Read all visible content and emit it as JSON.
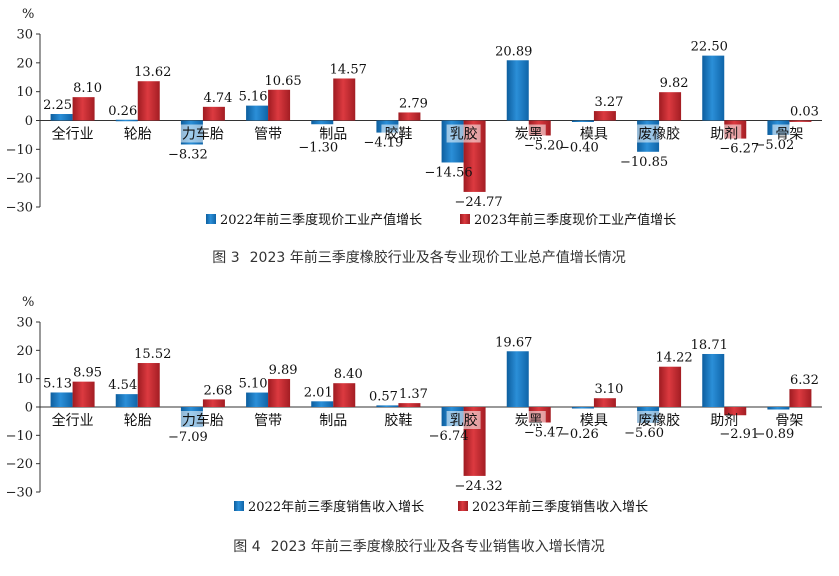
{
  "chart_data": [
    {
      "type": "bar",
      "figure_label": "图 3",
      "title": "2023 年前三季度橡胶行业及各专业现价工业总产值增长情况",
      "ylabel": "%",
      "ylim": [
        -30,
        30
      ],
      "yticks": [
        30,
        20,
        10,
        0,
        -10,
        -20,
        -30
      ],
      "categories": [
        "全行业",
        "轮胎",
        "力车胎",
        "管带",
        "制品",
        "胶鞋",
        "乳胶",
        "炭黑",
        "模具",
        "废橡胶",
        "助剂",
        "骨架"
      ],
      "series": [
        {
          "name": "2022年前三季度现价工业产值增长",
          "color": "#1a78c2",
          "values": [
            2.25,
            0.26,
            -8.32,
            5.16,
            -1.3,
            -4.19,
            -14.56,
            20.89,
            -0.4,
            -10.85,
            22.5,
            -5.02
          ]
        },
        {
          "name": "2023年前三季度现价工业产值增长",
          "color": "#c0272d",
          "values": [
            8.1,
            13.62,
            4.74,
            10.65,
            14.57,
            2.79,
            -24.77,
            -5.2,
            3.27,
            9.82,
            -6.27,
            0.03
          ]
        }
      ],
      "series_labels": [
        [
          "2.25",
          "0.26",
          "−8.32",
          "5.16",
          "−1.30",
          "−4.19",
          "−14.56",
          "20.89",
          "−0.40",
          "−10.85",
          "22.50",
          "−5.02"
        ],
        [
          "8.10",
          "13.62",
          "4.74",
          "10.65",
          "14.57",
          "2.79",
          "−24.77",
          "−5.20",
          "3.27",
          "9.82",
          "−6.27",
          "0.03"
        ]
      ],
      "yticklabels": [
        "30",
        "20",
        "10",
        "0",
        "−10",
        "−20",
        "−30"
      ],
      "legend_position": "bottom-center"
    },
    {
      "type": "bar",
      "figure_label": "图 4",
      "title": "2023 年前三季度橡胶行业及各专业销售收入增长情况",
      "ylabel": "%",
      "ylim": [
        -30,
        30
      ],
      "yticks": [
        30,
        20,
        10,
        0,
        -10,
        -20,
        -30
      ],
      "categories": [
        "全行业",
        "轮胎",
        "力车胎",
        "管带",
        "制品",
        "胶鞋",
        "乳胶",
        "炭黑",
        "模具",
        "废橡胶",
        "助剂",
        "骨架"
      ],
      "series": [
        {
          "name": "2022年前三季度销售收入增长",
          "color": "#1a78c2",
          "values": [
            5.13,
            4.54,
            -7.09,
            5.1,
            2.01,
            0.57,
            -6.74,
            19.67,
            -0.26,
            -5.6,
            18.71,
            -0.89
          ]
        },
        {
          "name": "2023年前三季度销售收入增长",
          "color": "#c0272d",
          "values": [
            8.95,
            15.52,
            2.68,
            9.89,
            8.4,
            1.37,
            -24.32,
            -5.47,
            3.1,
            14.22,
            -2.91,
            6.32
          ]
        }
      ],
      "series_labels": [
        [
          "5.13",
          "4.54",
          "−7.09",
          "5.10",
          "2.01",
          "0.57",
          "−6.74",
          "19.67",
          "−0.26",
          "−5.60",
          "18.71",
          "−0.89"
        ],
        [
          "8.95",
          "15.52",
          "2.68",
          "9.89",
          "8.40",
          "1.37",
          "−24.32",
          "−5.47",
          "3.10",
          "14.22",
          "−2.91",
          "6.32"
        ]
      ],
      "yticklabels": [
        "30",
        "20",
        "10",
        "0",
        "−10",
        "−20",
        "−30"
      ],
      "legend_position": "bottom-center"
    }
  ]
}
